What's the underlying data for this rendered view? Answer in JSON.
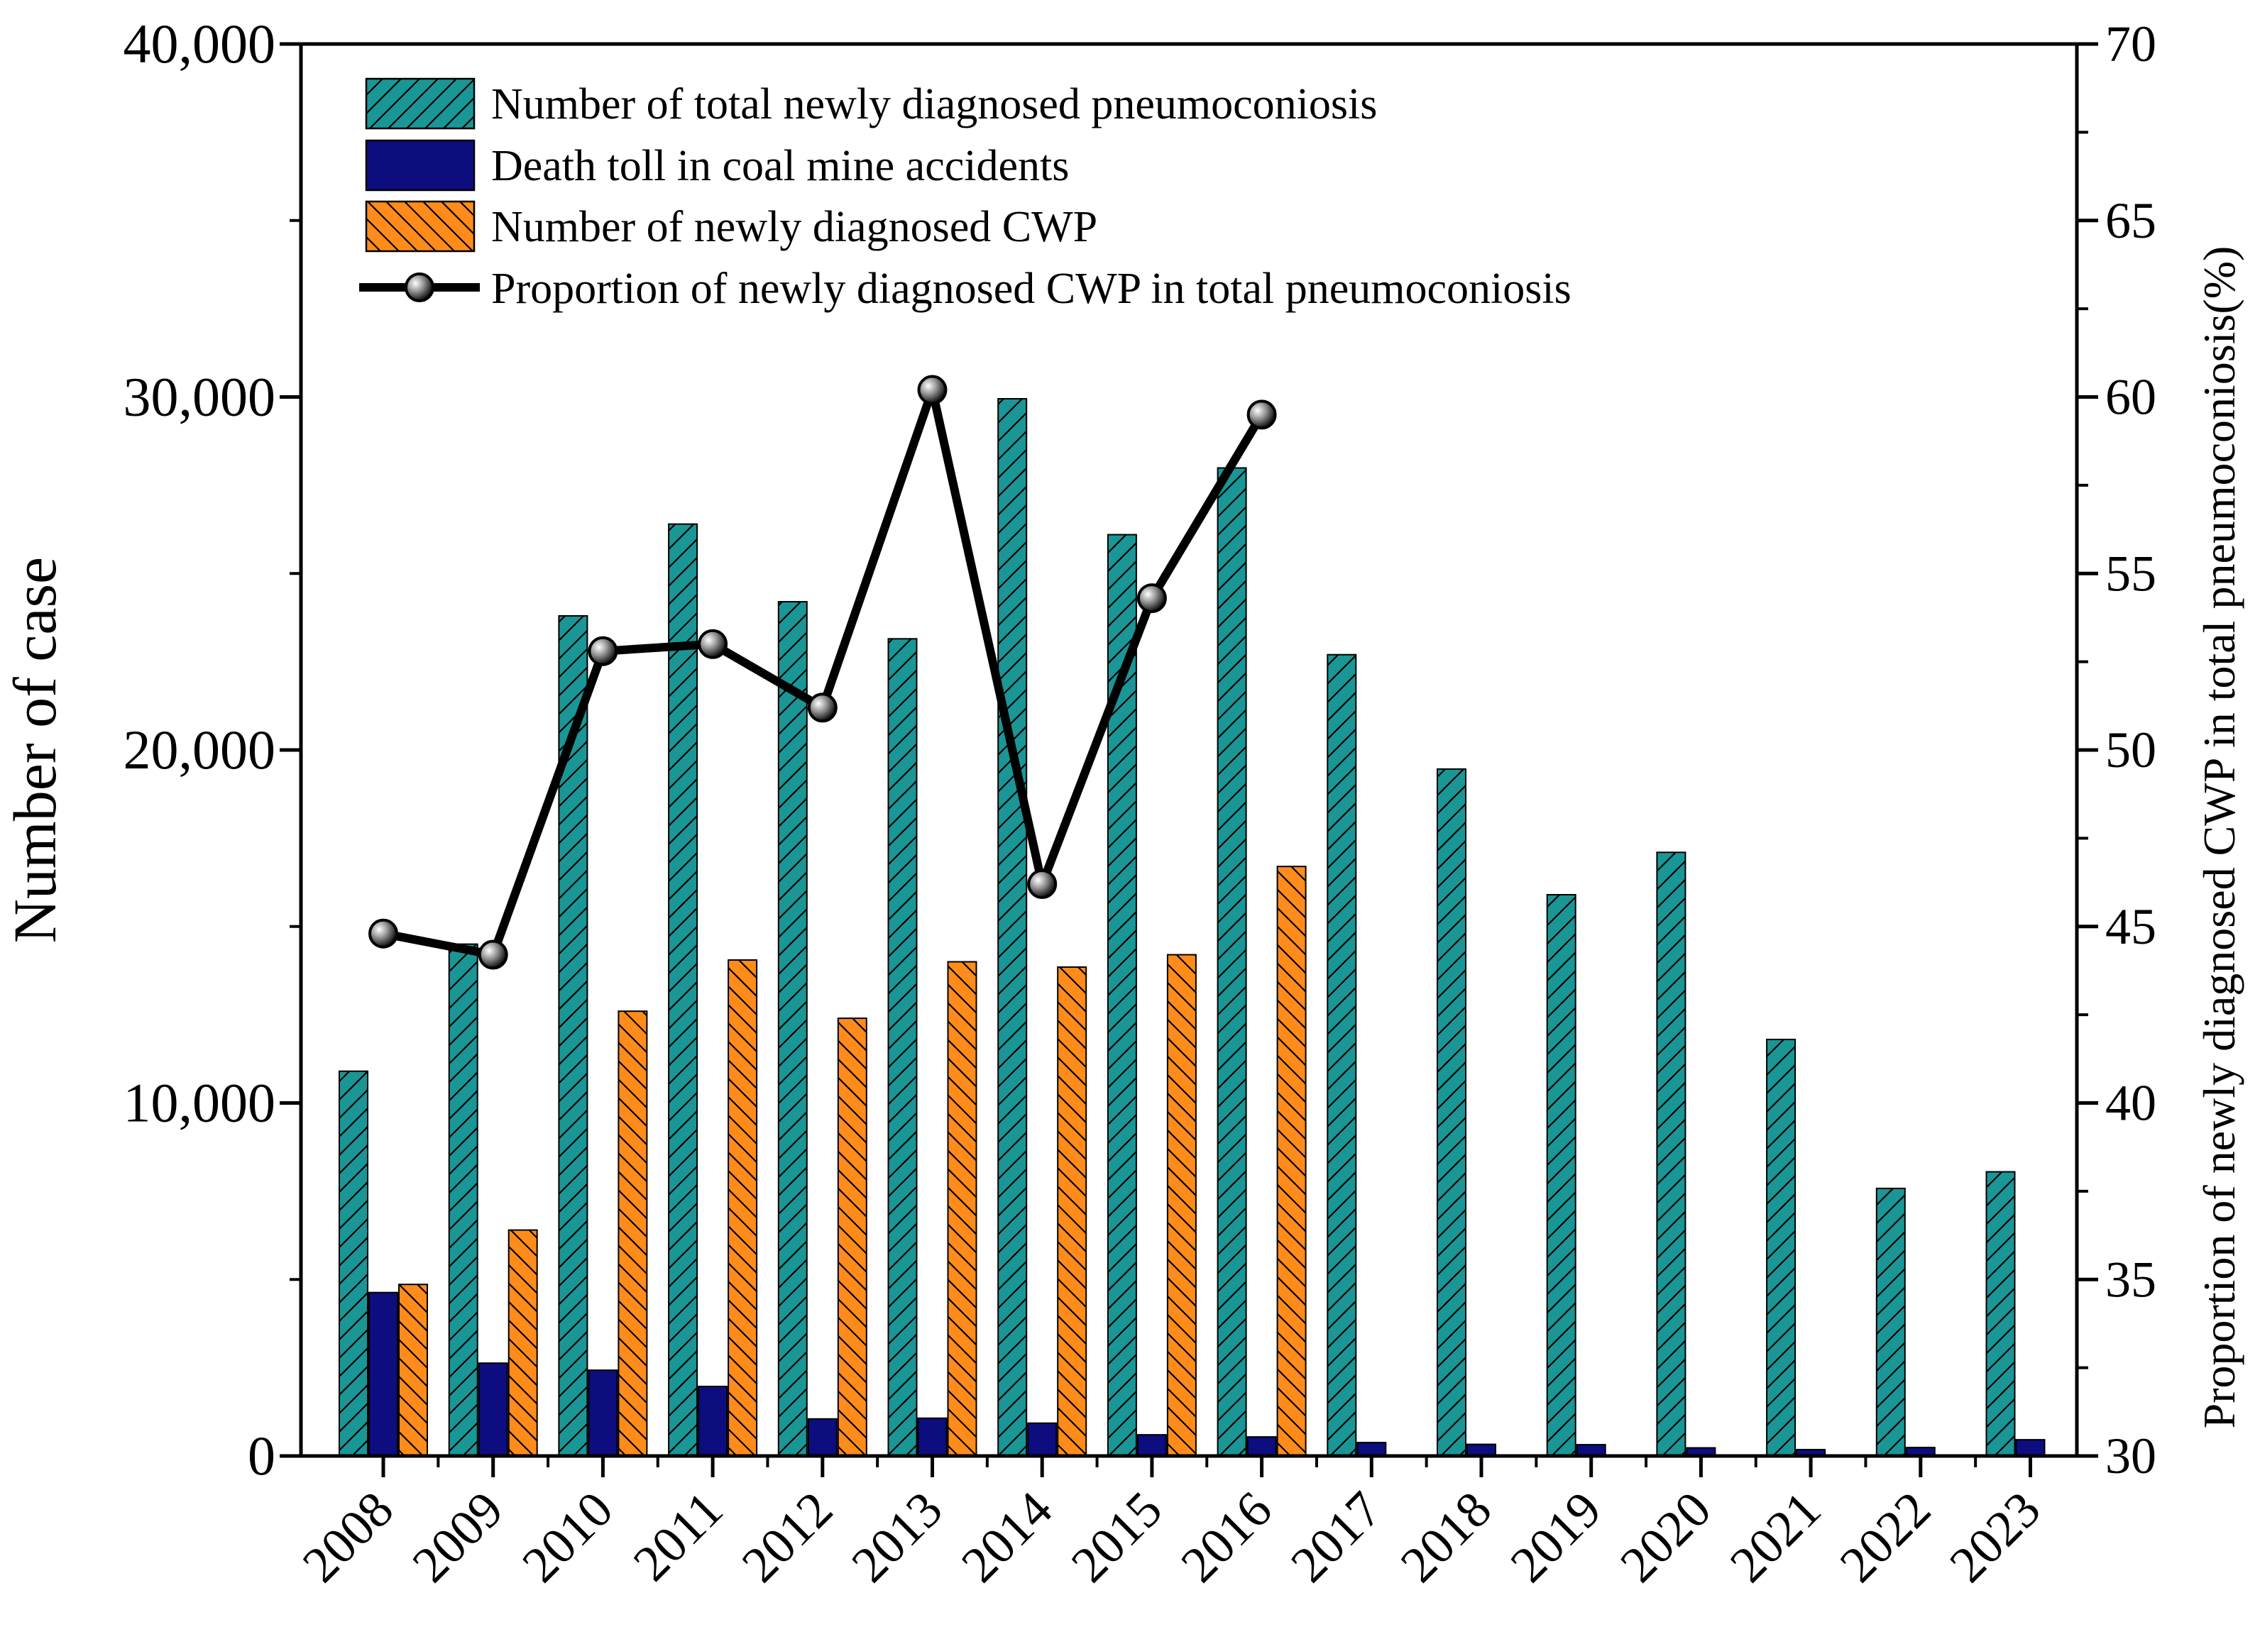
{
  "chart_data": {
    "type": "bar+line",
    "categories": [
      "2008",
      "2009",
      "2010",
      "2011",
      "2012",
      "2013",
      "2014",
      "2015",
      "2016",
      "2017",
      "2018",
      "2019",
      "2020",
      "2021",
      "2022",
      "2023"
    ],
    "series": [
      {
        "name": "Number of total  newly diagnosed pneumoconiosis",
        "type": "bar",
        "axis": "left",
        "color": "#1a9696",
        "pattern": "forward-hatch",
        "values": [
          10900,
          14500,
          23800,
          26400,
          24200,
          23150,
          29950,
          26100,
          27990,
          22700,
          19460,
          15900,
          17100,
          11800,
          7580,
          8050
        ]
      },
      {
        "name": "Death toll in coal mine accidents",
        "type": "bar",
        "axis": "left",
        "color": "#0d0d80",
        "pattern": "solid",
        "values": [
          4630,
          2630,
          2430,
          1970,
          1050,
          1070,
          930,
          600,
          540,
          380,
          330,
          320,
          230,
          180,
          240,
          460
        ]
      },
      {
        "name": "Number of newly diagnosed CWP",
        "type": "bar",
        "axis": "left",
        "color": "#ff8c1a",
        "pattern": "back-hatch",
        "values": [
          4860,
          6400,
          12600,
          14050,
          12400,
          14000,
          13850,
          14200,
          16700,
          null,
          null,
          null,
          null,
          null,
          null,
          null
        ]
      },
      {
        "name": "Proportion of newly diagnosed CWP in total pneumoconiosis",
        "type": "line",
        "axis": "right",
        "color": "#000000",
        "values": [
          44.8,
          44.2,
          52.8,
          53.0,
          51.2,
          60.2,
          46.2,
          54.3,
          59.5,
          null,
          null,
          null,
          null,
          null,
          null,
          null
        ]
      }
    ],
    "ylabel": "Number of case",
    "ylim": [
      0,
      40000
    ],
    "yticks": [
      0,
      10000,
      20000,
      30000,
      40000
    ],
    "ytick_labels": [
      "0",
      "10,000",
      "20,000",
      "30,000",
      "40,000"
    ],
    "y2label": "Proportion of newly diagnosed CWP in total pneumoconiosis(%)",
    "y2lim": [
      30,
      70
    ],
    "y2ticks": [
      30,
      35,
      40,
      45,
      50,
      55,
      60,
      65,
      70
    ],
    "y2tick_labels": [
      "30",
      "35",
      "40",
      "45",
      "50",
      "55",
      "60",
      "65",
      "70"
    ],
    "xlabel": "",
    "legend_position": "top-left",
    "grid": false
  }
}
